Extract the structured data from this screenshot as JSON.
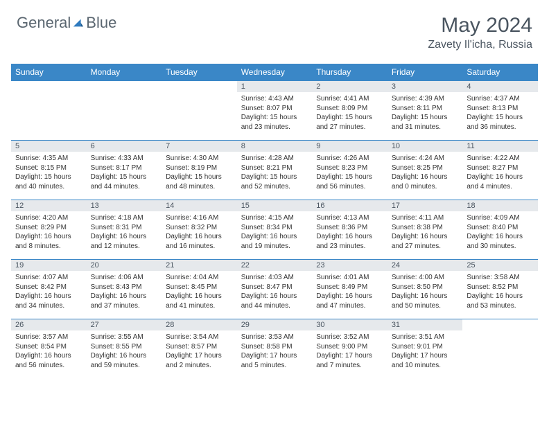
{
  "brand": {
    "part1": "General",
    "part2": "Blue"
  },
  "title": "May 2024",
  "location": "Zavety Il'icha, Russia",
  "colors": {
    "header_bg": "#3a87c7",
    "header_text": "#ffffff",
    "daynum_bg": "#e6e9ec",
    "text": "#333333",
    "border": "#3a87c7",
    "brand_gray": "#5a6670",
    "brand_blue": "#2f7bbf"
  },
  "dayNames": [
    "Sunday",
    "Monday",
    "Tuesday",
    "Wednesday",
    "Thursday",
    "Friday",
    "Saturday"
  ],
  "weeks": [
    [
      {
        "n": "",
        "sr": "",
        "ss": "",
        "dl": ""
      },
      {
        "n": "",
        "sr": "",
        "ss": "",
        "dl": ""
      },
      {
        "n": "",
        "sr": "",
        "ss": "",
        "dl": ""
      },
      {
        "n": "1",
        "sr": "Sunrise: 4:43 AM",
        "ss": "Sunset: 8:07 PM",
        "dl": "Daylight: 15 hours and 23 minutes."
      },
      {
        "n": "2",
        "sr": "Sunrise: 4:41 AM",
        "ss": "Sunset: 8:09 PM",
        "dl": "Daylight: 15 hours and 27 minutes."
      },
      {
        "n": "3",
        "sr": "Sunrise: 4:39 AM",
        "ss": "Sunset: 8:11 PM",
        "dl": "Daylight: 15 hours and 31 minutes."
      },
      {
        "n": "4",
        "sr": "Sunrise: 4:37 AM",
        "ss": "Sunset: 8:13 PM",
        "dl": "Daylight: 15 hours and 36 minutes."
      }
    ],
    [
      {
        "n": "5",
        "sr": "Sunrise: 4:35 AM",
        "ss": "Sunset: 8:15 PM",
        "dl": "Daylight: 15 hours and 40 minutes."
      },
      {
        "n": "6",
        "sr": "Sunrise: 4:33 AM",
        "ss": "Sunset: 8:17 PM",
        "dl": "Daylight: 15 hours and 44 minutes."
      },
      {
        "n": "7",
        "sr": "Sunrise: 4:30 AM",
        "ss": "Sunset: 8:19 PM",
        "dl": "Daylight: 15 hours and 48 minutes."
      },
      {
        "n": "8",
        "sr": "Sunrise: 4:28 AM",
        "ss": "Sunset: 8:21 PM",
        "dl": "Daylight: 15 hours and 52 minutes."
      },
      {
        "n": "9",
        "sr": "Sunrise: 4:26 AM",
        "ss": "Sunset: 8:23 PM",
        "dl": "Daylight: 15 hours and 56 minutes."
      },
      {
        "n": "10",
        "sr": "Sunrise: 4:24 AM",
        "ss": "Sunset: 8:25 PM",
        "dl": "Daylight: 16 hours and 0 minutes."
      },
      {
        "n": "11",
        "sr": "Sunrise: 4:22 AM",
        "ss": "Sunset: 8:27 PM",
        "dl": "Daylight: 16 hours and 4 minutes."
      }
    ],
    [
      {
        "n": "12",
        "sr": "Sunrise: 4:20 AM",
        "ss": "Sunset: 8:29 PM",
        "dl": "Daylight: 16 hours and 8 minutes."
      },
      {
        "n": "13",
        "sr": "Sunrise: 4:18 AM",
        "ss": "Sunset: 8:31 PM",
        "dl": "Daylight: 16 hours and 12 minutes."
      },
      {
        "n": "14",
        "sr": "Sunrise: 4:16 AM",
        "ss": "Sunset: 8:32 PM",
        "dl": "Daylight: 16 hours and 16 minutes."
      },
      {
        "n": "15",
        "sr": "Sunrise: 4:15 AM",
        "ss": "Sunset: 8:34 PM",
        "dl": "Daylight: 16 hours and 19 minutes."
      },
      {
        "n": "16",
        "sr": "Sunrise: 4:13 AM",
        "ss": "Sunset: 8:36 PM",
        "dl": "Daylight: 16 hours and 23 minutes."
      },
      {
        "n": "17",
        "sr": "Sunrise: 4:11 AM",
        "ss": "Sunset: 8:38 PM",
        "dl": "Daylight: 16 hours and 27 minutes."
      },
      {
        "n": "18",
        "sr": "Sunrise: 4:09 AM",
        "ss": "Sunset: 8:40 PM",
        "dl": "Daylight: 16 hours and 30 minutes."
      }
    ],
    [
      {
        "n": "19",
        "sr": "Sunrise: 4:07 AM",
        "ss": "Sunset: 8:42 PM",
        "dl": "Daylight: 16 hours and 34 minutes."
      },
      {
        "n": "20",
        "sr": "Sunrise: 4:06 AM",
        "ss": "Sunset: 8:43 PM",
        "dl": "Daylight: 16 hours and 37 minutes."
      },
      {
        "n": "21",
        "sr": "Sunrise: 4:04 AM",
        "ss": "Sunset: 8:45 PM",
        "dl": "Daylight: 16 hours and 41 minutes."
      },
      {
        "n": "22",
        "sr": "Sunrise: 4:03 AM",
        "ss": "Sunset: 8:47 PM",
        "dl": "Daylight: 16 hours and 44 minutes."
      },
      {
        "n": "23",
        "sr": "Sunrise: 4:01 AM",
        "ss": "Sunset: 8:49 PM",
        "dl": "Daylight: 16 hours and 47 minutes."
      },
      {
        "n": "24",
        "sr": "Sunrise: 4:00 AM",
        "ss": "Sunset: 8:50 PM",
        "dl": "Daylight: 16 hours and 50 minutes."
      },
      {
        "n": "25",
        "sr": "Sunrise: 3:58 AM",
        "ss": "Sunset: 8:52 PM",
        "dl": "Daylight: 16 hours and 53 minutes."
      }
    ],
    [
      {
        "n": "26",
        "sr": "Sunrise: 3:57 AM",
        "ss": "Sunset: 8:54 PM",
        "dl": "Daylight: 16 hours and 56 minutes."
      },
      {
        "n": "27",
        "sr": "Sunrise: 3:55 AM",
        "ss": "Sunset: 8:55 PM",
        "dl": "Daylight: 16 hours and 59 minutes."
      },
      {
        "n": "28",
        "sr": "Sunrise: 3:54 AM",
        "ss": "Sunset: 8:57 PM",
        "dl": "Daylight: 17 hours and 2 minutes."
      },
      {
        "n": "29",
        "sr": "Sunrise: 3:53 AM",
        "ss": "Sunset: 8:58 PM",
        "dl": "Daylight: 17 hours and 5 minutes."
      },
      {
        "n": "30",
        "sr": "Sunrise: 3:52 AM",
        "ss": "Sunset: 9:00 PM",
        "dl": "Daylight: 17 hours and 7 minutes."
      },
      {
        "n": "31",
        "sr": "Sunrise: 3:51 AM",
        "ss": "Sunset: 9:01 PM",
        "dl": "Daylight: 17 hours and 10 minutes."
      },
      {
        "n": "",
        "sr": "",
        "ss": "",
        "dl": ""
      }
    ]
  ]
}
